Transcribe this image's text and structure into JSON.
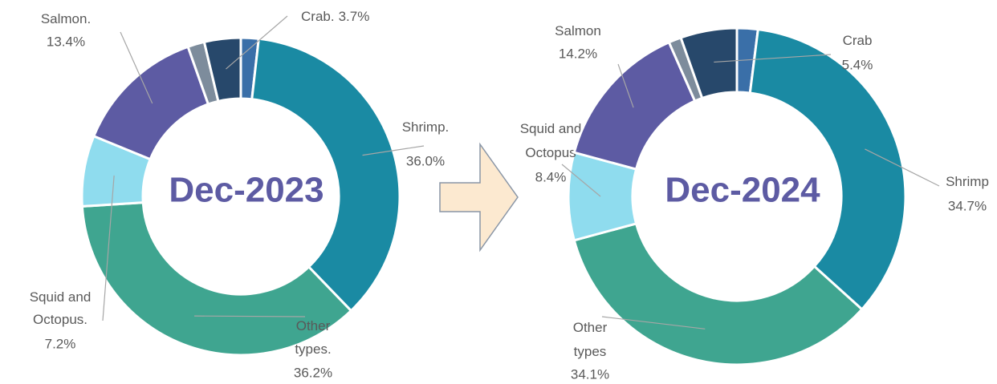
{
  "chart_data": [
    {
      "type": "donut",
      "title": "Dec-2023",
      "categories": [
        null,
        "Shrimp.",
        "Other types.",
        "Squid and Octopus.",
        "Salmon.",
        null,
        "Crab."
      ],
      "values": [
        1.8,
        36.0,
        36.2,
        7.2,
        13.4,
        1.7,
        3.7
      ],
      "value_labels": [
        null,
        "36.0%",
        "36.2%",
        "7.2%",
        "13.4%",
        null,
        "3.7%"
      ],
      "colors": [
        "#3a6fa8",
        "#1a8aa3",
        "#3fa590",
        "#8fdcee",
        "#5d5ba3",
        "#7d8c9c",
        "#27486b"
      ]
    },
    {
      "type": "donut",
      "title": "Dec-2024",
      "categories": [
        null,
        "Shrimp",
        "Other types",
        "Squid and Octopus",
        "Salmon",
        null,
        "Crab"
      ],
      "values": [
        2.0,
        34.7,
        34.1,
        8.4,
        14.2,
        1.2,
        5.4
      ],
      "value_labels": [
        null,
        "34.7%",
        "34.1%",
        "8.4%",
        "14.2%",
        null,
        "5.4%"
      ],
      "colors": [
        "#3a6fa8",
        "#1a8aa3",
        "#3fa590",
        "#8fdcee",
        "#5d5ba3",
        "#7d8c9c",
        "#27486b"
      ]
    }
  ]
}
